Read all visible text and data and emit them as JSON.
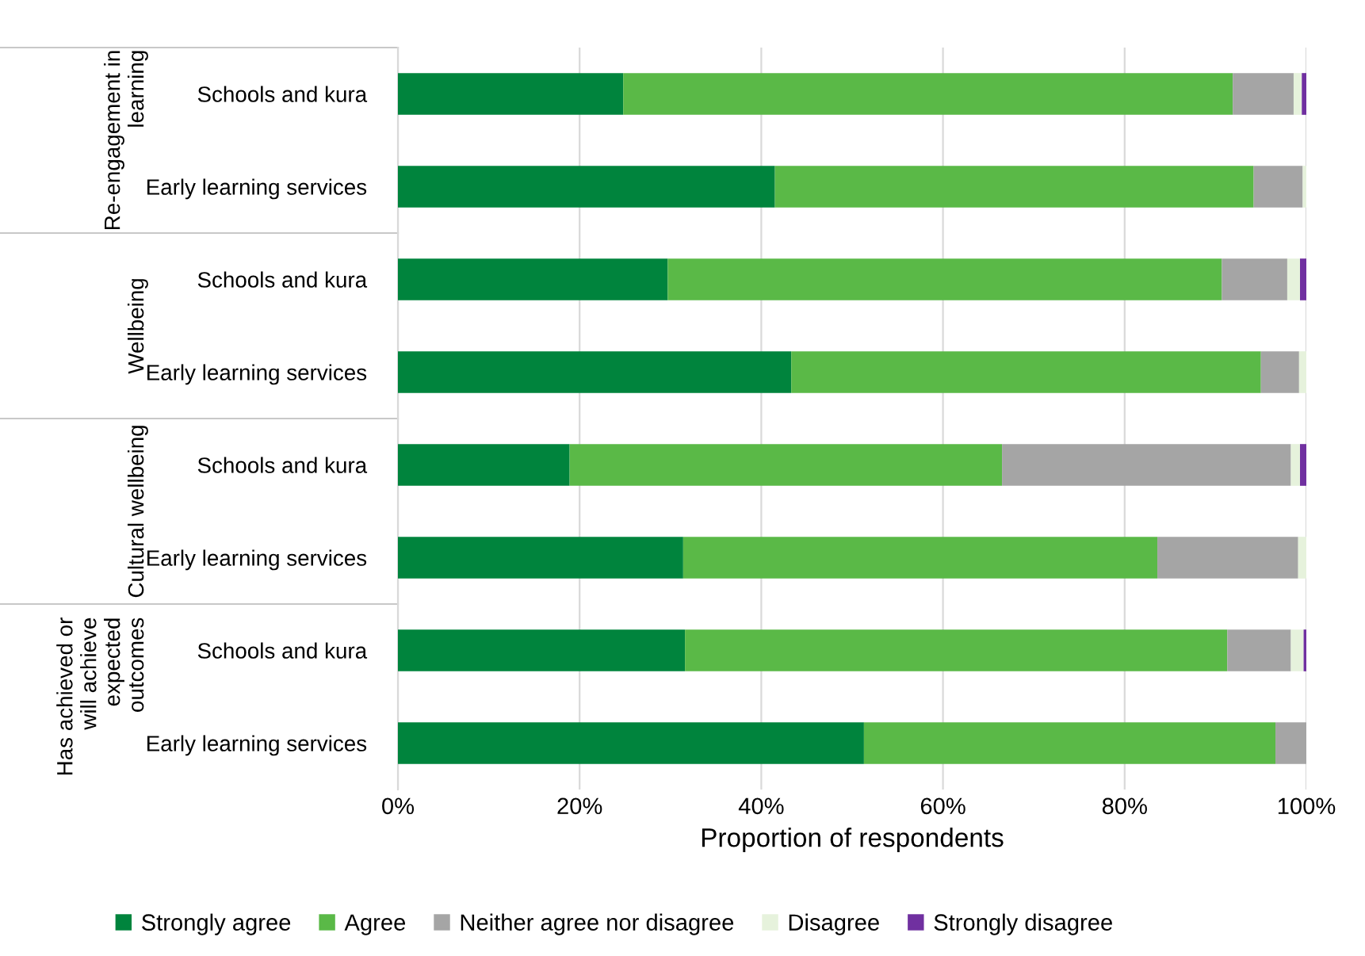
{
  "chart_data": {
    "type": "bar",
    "orientation": "horizontal",
    "stacked": true,
    "categories": [
      "Schools and kura",
      "Early learning services",
      "Schools and kura",
      "Early learning services",
      "Schools and kura",
      "Early learning services",
      "Schools and kura",
      "Early learning services"
    ],
    "series": [
      {
        "name": "Strongly agree",
        "color": "#00843d",
        "values": [
          24.8,
          41.5,
          29.7,
          43.3,
          18.9,
          31.4,
          31.6,
          51.3
        ]
      },
      {
        "name": "Agree",
        "color": "#5ab947",
        "values": [
          67.1,
          52.7,
          61.0,
          51.7,
          47.6,
          52.2,
          59.7,
          45.3
        ]
      },
      {
        "name": "Neither agree nor disagree",
        "color": "#a5a5a5",
        "values": [
          6.7,
          5.4,
          7.2,
          4.2,
          31.8,
          15.5,
          7.0,
          3.4
        ]
      },
      {
        "name": "Disagree",
        "color": "#e6f2dc",
        "values": [
          0.9,
          0.4,
          1.4,
          0.8,
          1.0,
          0.9,
          1.4,
          0
        ]
      },
      {
        "name": "Strongly disagree",
        "color": "#7030a0",
        "values": [
          0.5,
          0,
          0.7,
          0,
          0.7,
          0,
          0.3,
          0
        ]
      }
    ],
    "xlabel": "Proportion of respondents",
    "xlim": [
      0,
      100
    ],
    "xticks": [
      {
        "value": 0,
        "label": "0%"
      },
      {
        "value": 20,
        "label": "20%"
      },
      {
        "value": 40,
        "label": "40%"
      },
      {
        "value": 60,
        "label": "60%"
      },
      {
        "value": 80,
        "label": "80%"
      },
      {
        "value": 100,
        "label": "100%"
      }
    ],
    "grid": "x",
    "legend": "bottom",
    "annotations": [
      "Re-engagement in\nlearning",
      "Wellbeing",
      "Cultural wellbeing",
      "Has achieved or\nwill achieve\nexpected\noutcomes"
    ]
  }
}
